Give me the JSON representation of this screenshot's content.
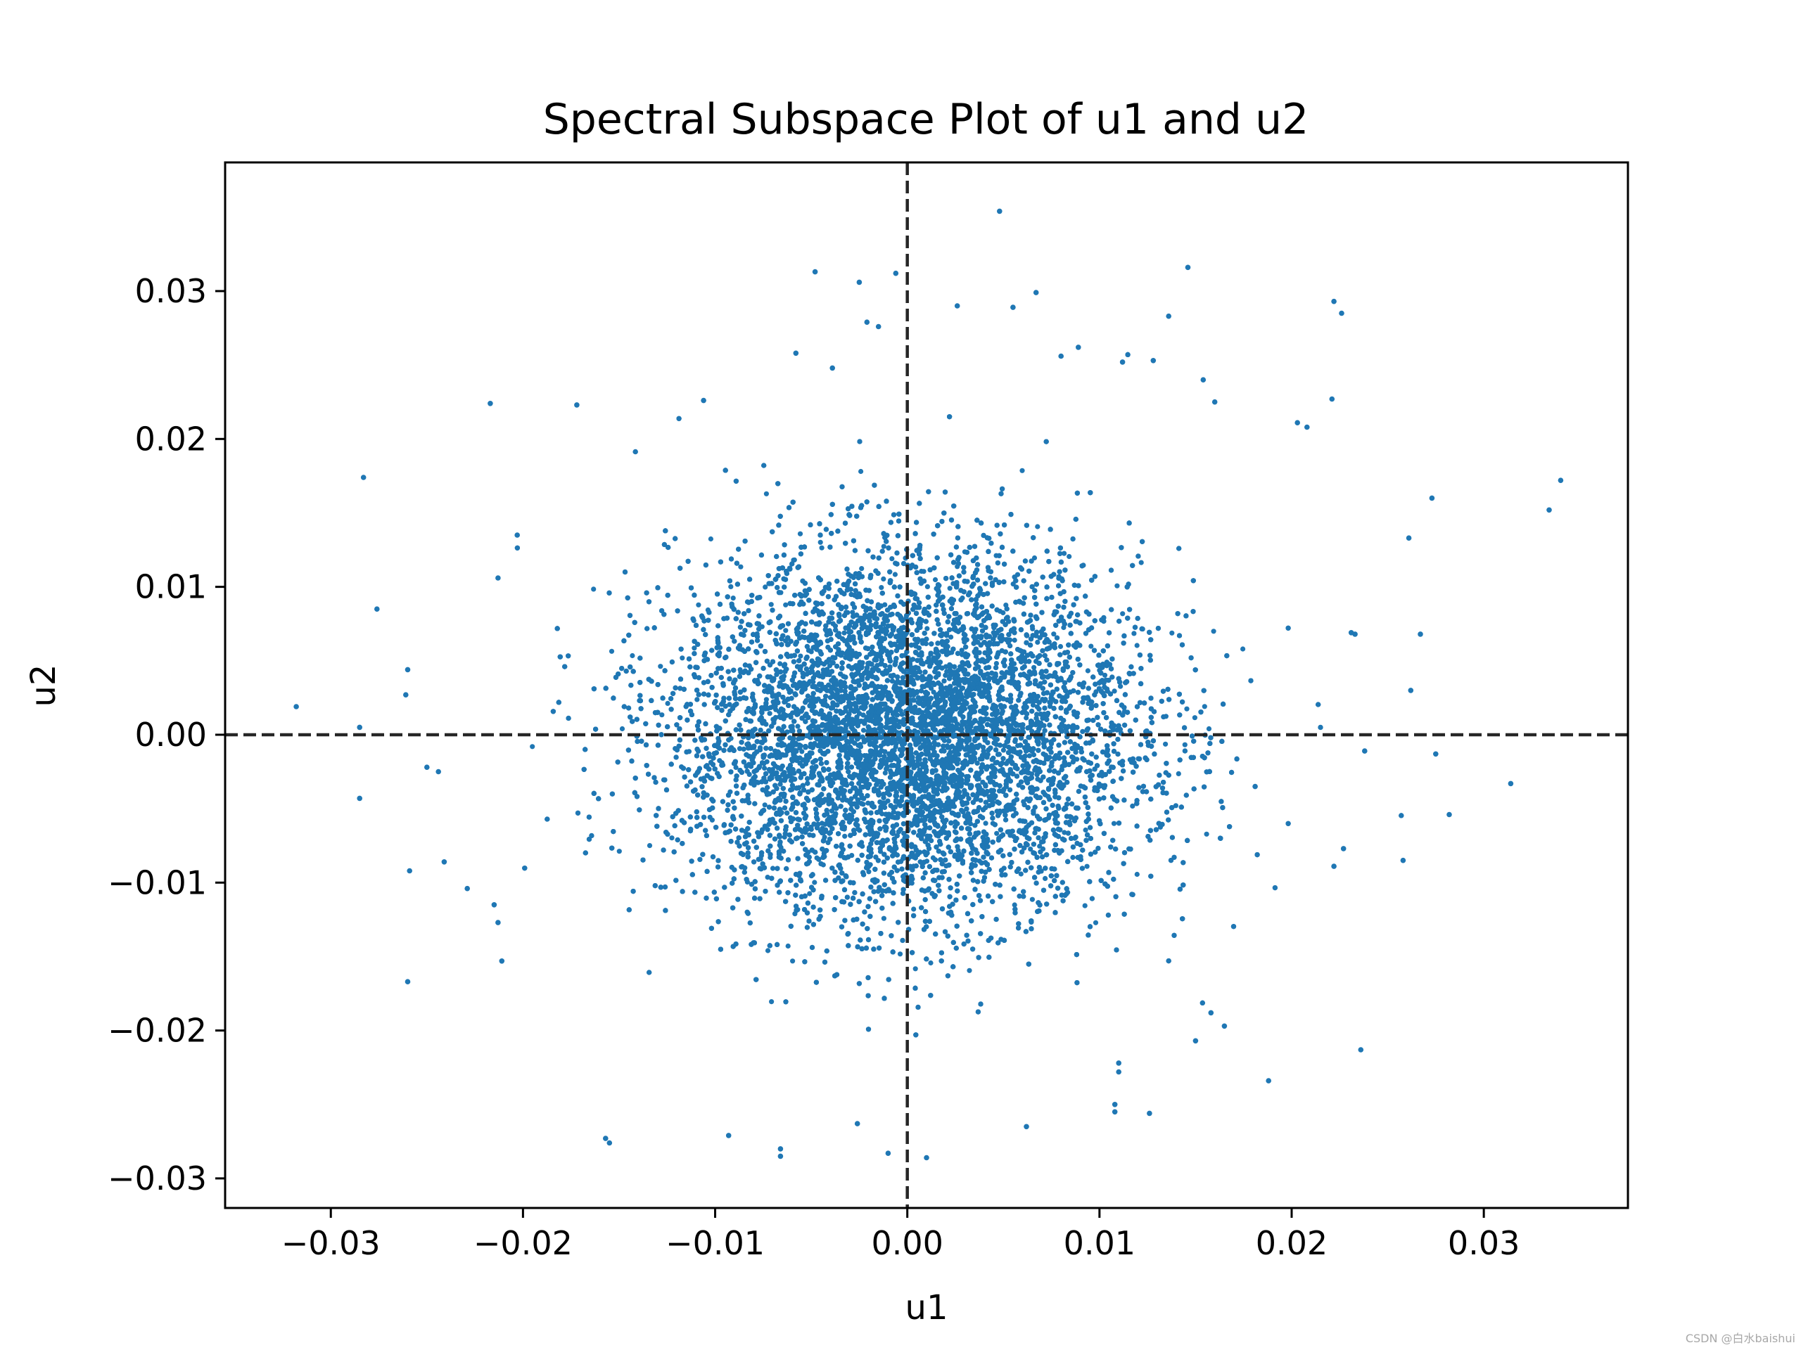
{
  "colors": {
    "marker": "#1f77b4",
    "refline": "#262626",
    "axis": "#000000",
    "background": "#ffffff"
  },
  "watermark": "CSDN @白水baishui",
  "chart_data": {
    "type": "scatter",
    "title": "Spectral Subspace Plot of u1 and u2",
    "xlabel": "u1",
    "ylabel": "u2",
    "xlim": [
      -0.0355,
      0.0375
    ],
    "ylim": [
      -0.032,
      0.0387
    ],
    "xticks": [
      -0.03,
      -0.02,
      -0.01,
      0.0,
      0.01,
      0.02,
      0.03
    ],
    "xtick_labels": [
      "−0.03",
      "−0.02",
      "−0.01",
      "0.00",
      "0.01",
      "0.02",
      "0.03"
    ],
    "yticks": [
      -0.03,
      -0.02,
      -0.01,
      0.0,
      0.01,
      0.02,
      0.03
    ],
    "ytick_labels": [
      "−0.03",
      "−0.02",
      "−0.01",
      "0.00",
      "0.01",
      "0.02",
      "0.03"
    ],
    "grid": false,
    "reference_lines": [
      {
        "orientation": "vertical",
        "value": 0.0,
        "style": "dashed"
      },
      {
        "orientation": "horizontal",
        "value": 0.0,
        "style": "dashed"
      }
    ],
    "series": [
      {
        "distribution": "approximately bivariate normal, centered near (0, 0), sd ≈ 0.006 in u1 and u2",
        "points": [
          [
            0.0048,
            0.0354
          ],
          [
            -0.0048,
            0.0313
          ],
          [
            0.0146,
            0.0316
          ],
          [
            0.0222,
            0.0293
          ],
          [
            0.0226,
            0.0285
          ],
          [
            -0.0025,
            0.0306
          ],
          [
            -0.0006,
            0.0312
          ],
          [
            0.0067,
            0.0299
          ],
          [
            0.0055,
            0.0289
          ],
          [
            0.0026,
            0.029
          ],
          [
            0.0136,
            0.0283
          ],
          [
            0.0089,
            0.0262
          ],
          [
            -0.0021,
            0.0279
          ],
          [
            -0.0015,
            0.0276
          ],
          [
            0.008,
            0.0256
          ],
          [
            0.0112,
            0.0252
          ],
          [
            0.0128,
            0.0253
          ],
          [
            -0.0058,
            0.0258
          ],
          [
            -0.0039,
            0.0248
          ],
          [
            0.0154,
            0.024
          ],
          [
            0.0221,
            0.0227
          ],
          [
            0.016,
            0.0225
          ],
          [
            -0.0217,
            0.0224
          ],
          [
            -0.0172,
            0.0223
          ],
          [
            -0.0106,
            0.0226
          ],
          [
            0.0203,
            0.0211
          ],
          [
            0.0208,
            0.0208
          ],
          [
            0.034,
            0.0172
          ],
          [
            0.0334,
            0.0152
          ],
          [
            0.0261,
            0.0133
          ],
          [
            0.0273,
            0.016
          ],
          [
            -0.0283,
            0.0174
          ],
          [
            -0.0203,
            0.0135
          ],
          [
            -0.0276,
            0.0085
          ],
          [
            -0.0213,
            0.0106
          ],
          [
            -0.0318,
            0.0019
          ],
          [
            -0.0285,
            0.0005
          ],
          [
            -0.0261,
            0.0027
          ],
          [
            -0.026,
            0.0044
          ],
          [
            -0.0285,
            -0.0043
          ],
          [
            -0.025,
            -0.0022
          ],
          [
            -0.0244,
            -0.0025
          ],
          [
            -0.0259,
            -0.0092
          ],
          [
            -0.0241,
            -0.0086
          ],
          [
            -0.0229,
            -0.0104
          ],
          [
            -0.0215,
            -0.0115
          ],
          [
            -0.0213,
            -0.0127
          ],
          [
            -0.0211,
            -0.0153
          ],
          [
            -0.026,
            -0.0167
          ],
          [
            -0.0157,
            -0.0273
          ],
          [
            -0.0155,
            -0.0276
          ],
          [
            -0.0066,
            -0.028
          ],
          [
            -0.0066,
            -0.0285
          ],
          [
            -0.0093,
            -0.0271
          ],
          [
            -0.0026,
            -0.0263
          ],
          [
            -0.001,
            -0.0283
          ],
          [
            0.001,
            -0.0286
          ],
          [
            0.0062,
            -0.0265
          ],
          [
            0.0108,
            -0.0255
          ],
          [
            0.0108,
            -0.025
          ],
          [
            0.0126,
            -0.0256
          ],
          [
            0.011,
            -0.0228
          ],
          [
            0.011,
            -0.0222
          ],
          [
            0.0188,
            -0.0234
          ],
          [
            0.0236,
            -0.0213
          ],
          [
            0.015,
            -0.0207
          ],
          [
            0.0165,
            -0.0197
          ],
          [
            0.0158,
            -0.0188
          ],
          [
            0.0262,
            0.003
          ],
          [
            0.0267,
            0.0068
          ],
          [
            0.0233,
            0.0068
          ],
          [
            0.0231,
            0.0069
          ],
          [
            0.0282,
            -0.0054
          ],
          [
            0.0275,
            -0.0013
          ],
          [
            0.0314,
            -0.0033
          ],
          [
            0.0258,
            -0.0085
          ],
          [
            0.0238,
            -0.0011
          ],
          [
            0.0227,
            -0.0077
          ],
          [
            0.0222,
            -0.0089
          ],
          [
            0.0181,
            -0.0035
          ]
        ]
      }
    ]
  }
}
